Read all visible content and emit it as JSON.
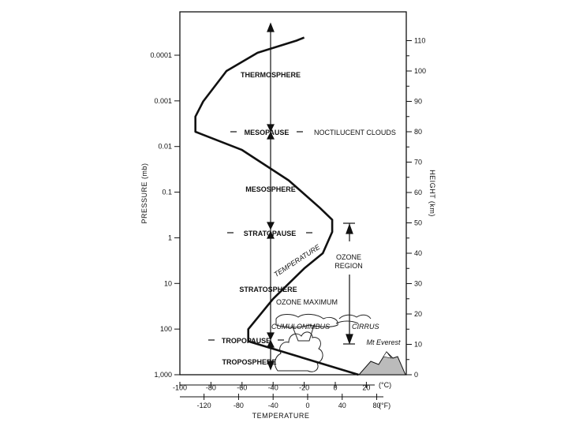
{
  "chart_data": {
    "type": "line",
    "title": "",
    "y_left_label": "PRESSURE (mb)",
    "y_right_label": "HEIGHT (km)",
    "x_label": "TEMPERATURE",
    "x_unit_c": "(°C)",
    "x_unit_f": "(°F)",
    "pressure_ticks": [
      "0.0001",
      "0.001",
      "0.01",
      "0.1",
      "1",
      "10",
      "100",
      "1,000"
    ],
    "height_ticks": [
      0,
      10,
      20,
      30,
      40,
      50,
      60,
      70,
      80,
      90,
      100,
      110
    ],
    "height_range": [
      0,
      110
    ],
    "celsius_ticks": [
      -100,
      -80,
      -60,
      -40,
      -20,
      0,
      20
    ],
    "celsius_range": [
      -100,
      20
    ],
    "fahrenheit_ticks": [
      -120,
      -80,
      -40,
      0,
      40,
      80
    ],
    "temperature_profile": {
      "x_celsius": [
        15,
        -56,
        -56,
        -40,
        -20,
        -8,
        -2,
        -2,
        -10,
        -30,
        -60,
        -90,
        -90,
        -85,
        -70,
        -50,
        -25,
        -20
      ],
      "y_height_km": [
        0,
        11,
        15,
        25,
        35,
        40,
        47,
        51,
        55,
        64,
        74,
        80,
        85,
        90,
        100,
        106,
        110,
        111
      ]
    }
  },
  "layers": {
    "thermosphere": "THERMOSPHERE",
    "mesopause": "MESOPAUSE",
    "mesosphere": "MESOSPHERE",
    "stratopause": "STRATOPAUSE",
    "stratosphere": "STRATOSPHERE",
    "tropopause": "TROPOPAUSE",
    "troposphere": "TROPOSPHERE"
  },
  "annotations": {
    "noctilucent": "NOCTILUCENT CLOUDS",
    "temperature_curve": "TEMPERATURE",
    "ozone_region_1": "OZONE",
    "ozone_region_2": "REGION",
    "ozone_maximum": "OZONE MAXIMUM",
    "cumulonimbus": "CUMULONIMBUS",
    "cirrus": "CIRRUS",
    "everest": "Mt Everest"
  }
}
